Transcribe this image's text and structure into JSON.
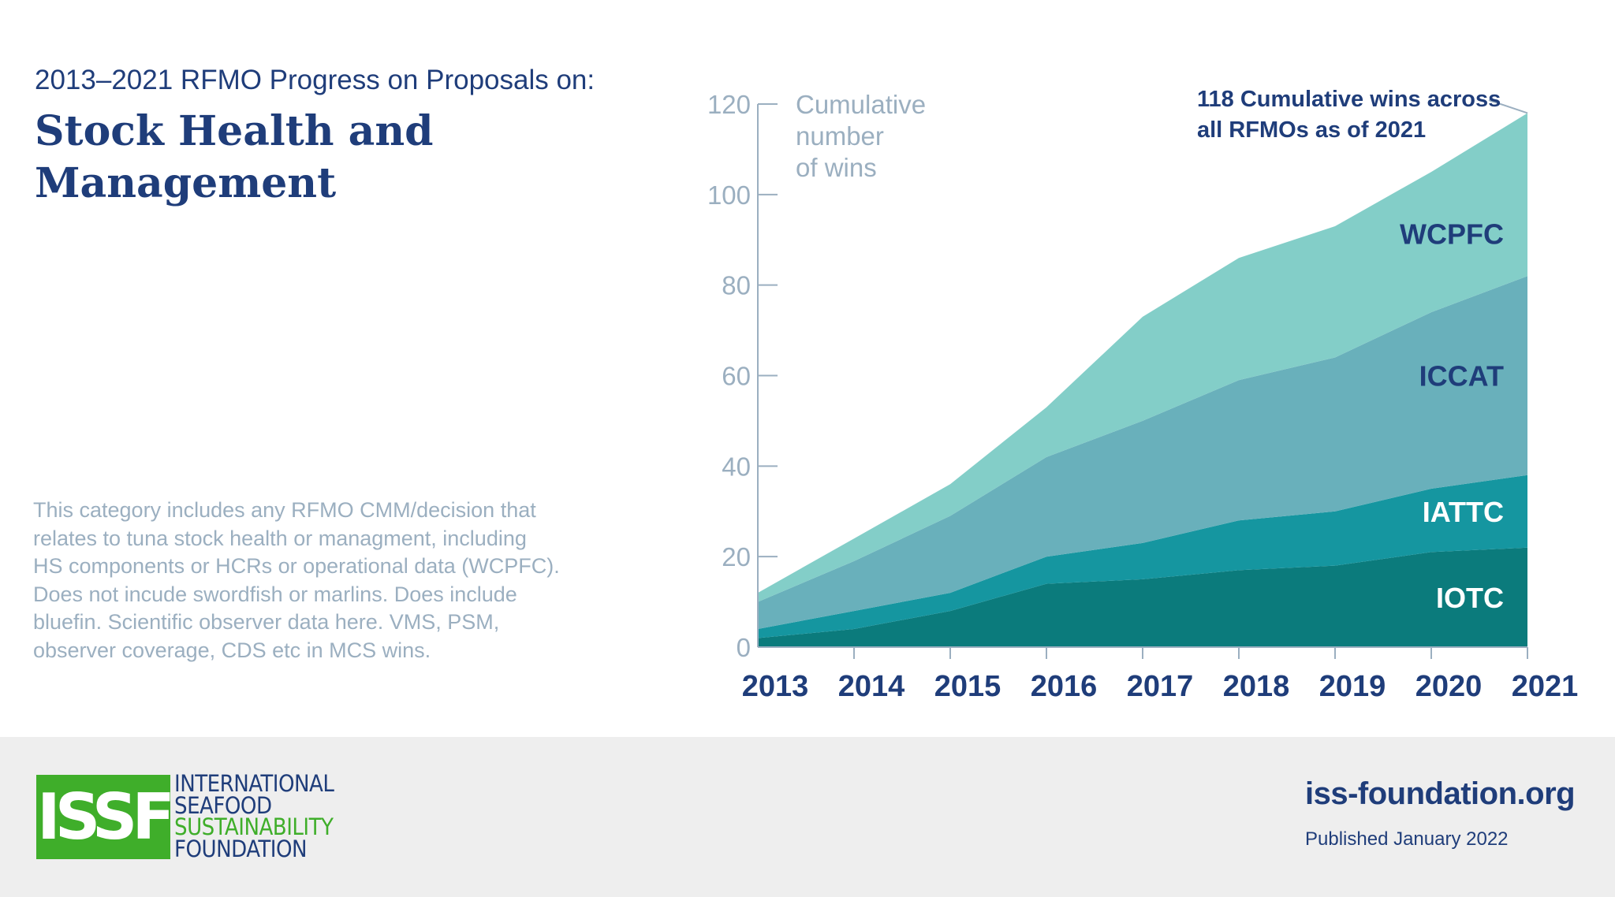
{
  "header": {
    "subtitle": "2013–2021 RFMO Progress on Proposals on:",
    "title_line1": "Stock Health and",
    "title_line2": "Management"
  },
  "note_lines": [
    "This category includes any RFMO CMM/decision that",
    "relates to tuna stock health or managment, including",
    "HS components or HCRs or operational data (WCPFC).",
    "Does not incude swordfish or marlins. Does include",
    "bluefin. Scientific observer data here. VMS, PSM,",
    "observer coverage, CDS etc in MCS wins."
  ],
  "colors": {
    "IOTC": "#0b7b7c",
    "IATTC": "#1596a0",
    "ICCAT": "#69b0bb",
    "WCPFC": "#83cec8",
    "axis": "#9bafc0",
    "brand_blue": "#1f3d7a",
    "brand_green": "#3fae2a",
    "label_light": "#ffffff"
  },
  "chart_data": {
    "type": "area",
    "stacked": true,
    "x": [
      2013,
      2014,
      2015,
      2016,
      2017,
      2018,
      2019,
      2020,
      2021
    ],
    "x_tick_labels": [
      "2013",
      "2014",
      "2015",
      "2016",
      "2017",
      "2018",
      "2019",
      "2020",
      "2021"
    ],
    "ylabel_lines": [
      "Cumulative",
      "number",
      "of wins"
    ],
    "ylim": [
      0,
      120
    ],
    "y_ticks": [
      0,
      20,
      40,
      60,
      80,
      100,
      120
    ],
    "grid": false,
    "series": [
      {
        "name": "IOTC",
        "values": [
          2,
          4,
          8,
          14,
          15,
          17,
          18,
          21,
          22
        ]
      },
      {
        "name": "IATTC",
        "values": [
          2,
          4,
          4,
          6,
          8,
          11,
          12,
          14,
          16
        ]
      },
      {
        "name": "ICCAT",
        "values": [
          6,
          11,
          17,
          22,
          27,
          31,
          34,
          39,
          44
        ]
      },
      {
        "name": "WCPFC",
        "values": [
          2,
          5,
          7,
          11,
          23,
          27,
          29,
          31,
          36
        ]
      }
    ],
    "annotation": {
      "line1": "118 Cumulative wins across",
      "line2": "all RFMOs as of 2021",
      "x": 2021,
      "y": 118
    }
  },
  "footer": {
    "logo_mark": "ISSF",
    "logo_lines": [
      "INTERNATIONAL",
      "SEAFOOD",
      "SUSTAINABILITY",
      "FOUNDATION"
    ],
    "website": "iss-foundation.org",
    "published": "Published January 2022"
  }
}
